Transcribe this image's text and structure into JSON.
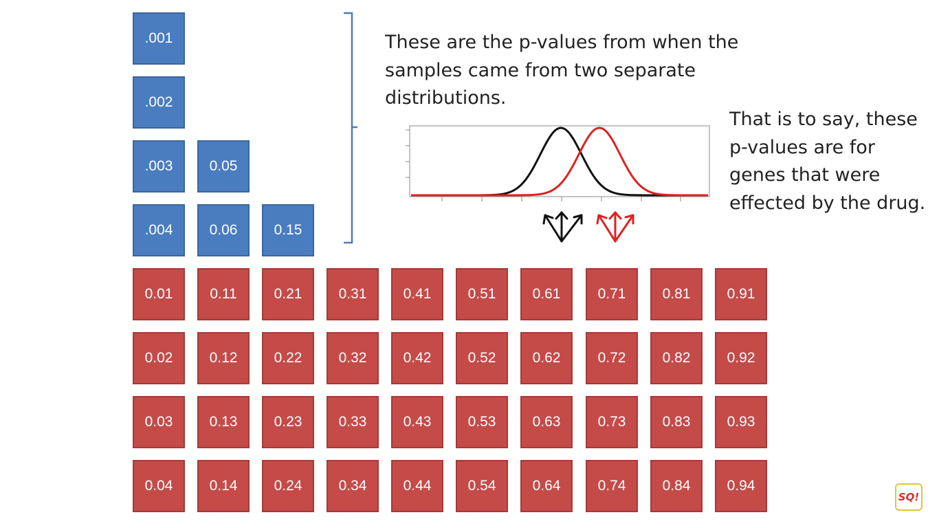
{
  "caption_top": "These are the p-values from when the samples came from two separate distributions.",
  "caption_side": "That is to say, these p-values are for genes that were effected by the drug.",
  "colors": {
    "blue_box": "#4a7dbf",
    "red_box": "#c44b48",
    "curve_black": "#111111",
    "curve_red": "#e02020",
    "bracket": "#4a7dbf"
  },
  "blue_columns": [
    [
      ".001",
      ".002",
      ".003",
      ".004"
    ],
    [
      "0.05",
      "0.06"
    ],
    [
      "0.15"
    ]
  ],
  "red_rows": [
    [
      "0.01",
      "0.11",
      "0.21",
      "0.31",
      "0.41",
      "0.51",
      "0.61",
      "0.71",
      "0.81",
      "0.91"
    ],
    [
      "0.02",
      "0.12",
      "0.22",
      "0.32",
      "0.42",
      "0.52",
      "0.62",
      "0.72",
      "0.82",
      "0.92"
    ],
    [
      "0.03",
      "0.13",
      "0.23",
      "0.33",
      "0.43",
      "0.53",
      "0.63",
      "0.73",
      "0.83",
      "0.93"
    ],
    [
      "0.04",
      "0.14",
      "0.24",
      "0.34",
      "0.44",
      "0.54",
      "0.64",
      "0.74",
      "0.84",
      "0.94"
    ]
  ],
  "logo_text": "SQ!"
}
